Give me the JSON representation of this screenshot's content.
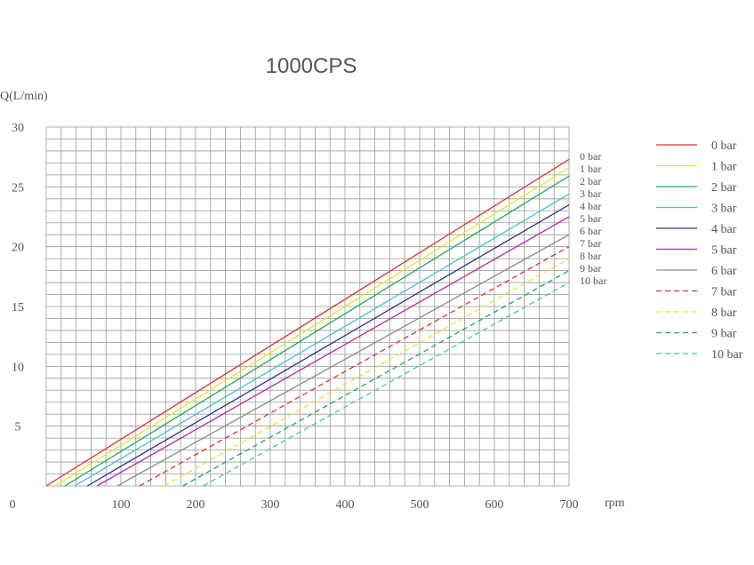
{
  "chart_data": {
    "type": "line",
    "title": "1000CPS",
    "ylabel": "Q(L/min)",
    "xlabel": "rpm",
    "xlim": [
      0,
      700
    ],
    "ylim": [
      0,
      30
    ],
    "xticks": [
      "0",
      "100",
      "200",
      "300",
      "400",
      "500",
      "600",
      "700"
    ],
    "yticks": [
      "5",
      "10",
      "15",
      "20",
      "25",
      "30"
    ],
    "grid": true,
    "legend_position": "right",
    "series": [
      {
        "name": "0 bar",
        "color": "#e03131",
        "dash": false,
        "x0": 0,
        "y_at_700": 27.3
      },
      {
        "name": "1 bar",
        "color": "#e8e52a",
        "dash": false,
        "x0": 12,
        "y_at_700": 26.6
      },
      {
        "name": "2 bar",
        "color": "#1fa855",
        "dash": false,
        "x0": 25,
        "y_at_700": 25.9
      },
      {
        "name": "3 bar",
        "color": "#3ec5c5",
        "dash": false,
        "x0": 38,
        "y_at_700": 24.4
      },
      {
        "name": "4 bar",
        "color": "#2c2f8c",
        "dash": false,
        "x0": 55,
        "y_at_700": 23.5
      },
      {
        "name": "5 bar",
        "color": "#b42aa3",
        "dash": false,
        "x0": 68,
        "y_at_700": 22.5
      },
      {
        "name": "6 bar",
        "color": "#8a8a8a",
        "dash": false,
        "x0": 95,
        "y_at_700": 21.0
      },
      {
        "name": "7 bar",
        "color": "#e03131",
        "dash": true,
        "x0": 125,
        "y_at_700": 20.0
      },
      {
        "name": "8 bar",
        "color": "#e8e52a",
        "dash": true,
        "x0": 158,
        "y_at_700": 19.0
      },
      {
        "name": "9 bar",
        "color": "#1fa855",
        "dash": true,
        "x0": 183,
        "y_at_700": 18.0
      },
      {
        "name": "10 bar",
        "color": "#3ec5c5",
        "dash": true,
        "x0": 210,
        "y_at_700": 17.0
      }
    ]
  },
  "origin_label": "0"
}
